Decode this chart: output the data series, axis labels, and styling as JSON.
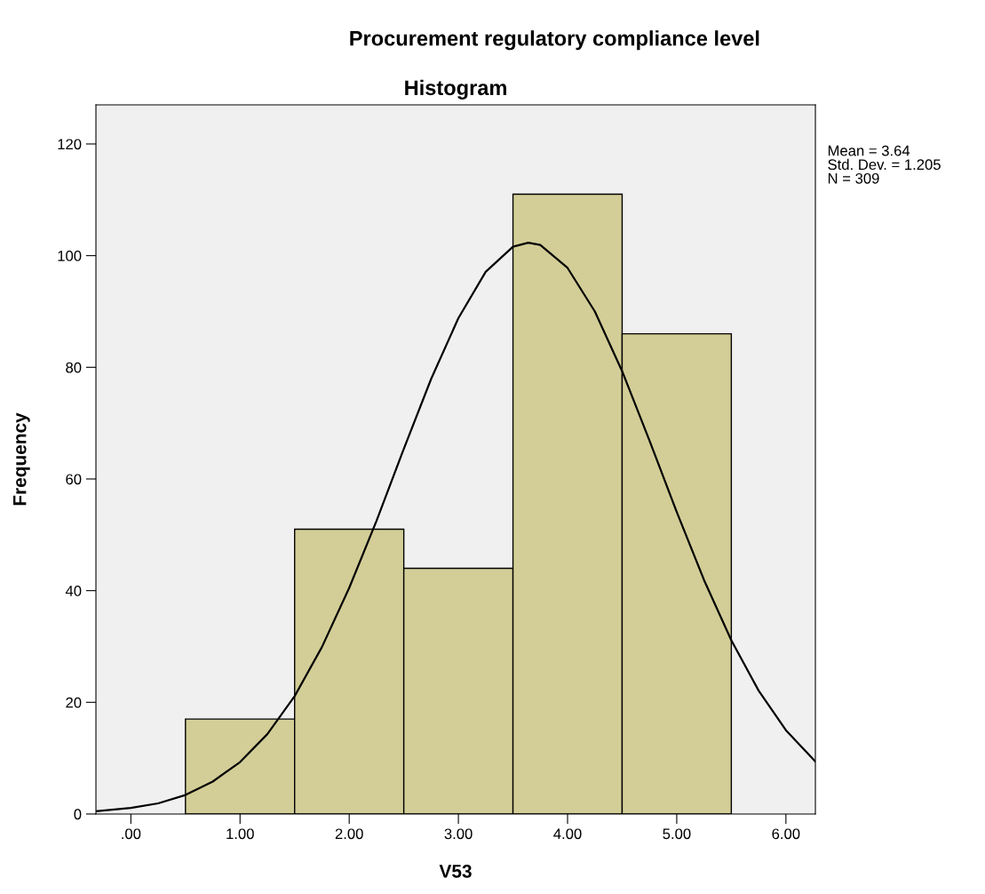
{
  "chart_data": {
    "type": "histogram",
    "title": "Procurement regulatory compliance level",
    "subtitle": "Histogram",
    "xlabel": "V53",
    "ylabel": "Frequency",
    "bins": [
      0.5,
      1.5,
      2.5,
      3.5,
      4.5,
      5.5
    ],
    "values": [
      17,
      51,
      44,
      111,
      86
    ],
    "color": "#d3ce97",
    "series": [
      {
        "type": "line",
        "color": "#000000",
        "x": [
          -0.32,
          0,
          0.25,
          0.5,
          0.75,
          1.0,
          1.25,
          1.5,
          1.75,
          2.0,
          2.25,
          2.5,
          2.75,
          3.0,
          3.25,
          3.5,
          3.64,
          3.75,
          4.0,
          4.25,
          4.5,
          4.75,
          5.0,
          5.25,
          5.5,
          5.75,
          6.0,
          6.27
        ],
        "values": [
          0.5,
          1.1,
          1.9,
          3.4,
          5.8,
          9.3,
          14.3,
          21.1,
          29.9,
          40.5,
          52.5,
          65.4,
          77.9,
          88.8,
          97.1,
          101.6,
          102.3,
          101.9,
          97.8,
          90.0,
          79.3,
          66.9,
          54.1,
          41.9,
          31.1,
          22.1,
          15.0,
          9.4
        ]
      }
    ],
    "xlim": [
      -0.32,
      6.27
    ],
    "ylim": [
      0,
      127
    ],
    "xticks": [
      {
        "value": 0,
        "label": ".00"
      },
      {
        "value": 1,
        "label": "1.00"
      },
      {
        "value": 2,
        "label": "2.00"
      },
      {
        "value": 3,
        "label": "3.00"
      },
      {
        "value": 4,
        "label": "4.00"
      },
      {
        "value": 5,
        "label": "5.00"
      },
      {
        "value": 6,
        "label": "6.00"
      }
    ],
    "yticks": [
      0,
      20,
      40,
      60,
      80,
      100,
      120
    ],
    "grid": false,
    "legend": false,
    "annotations": [
      "Mean = 3.64",
      "Std. Dev. = 1.205",
      "N = 309"
    ]
  }
}
